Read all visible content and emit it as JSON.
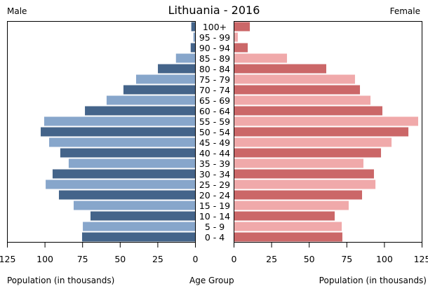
{
  "chart_data": {
    "type": "bar",
    "title": "Lithuania - 2016",
    "left_label": "Male",
    "right_label": "Female",
    "xlabel_left": "Population (in thousands)",
    "xlabel_center": "Age Group",
    "xlabel_right": "Population (in thousands)",
    "xlim": [
      0,
      125
    ],
    "ticks": [
      "0",
      "25",
      "50",
      "75",
      "100",
      "125"
    ],
    "tick_values": [
      0,
      25,
      50,
      75,
      100,
      125
    ],
    "categories": [
      "100+",
      "95 - 99",
      "90 - 94",
      "85 - 89",
      "80 - 84",
      "75 - 79",
      "70 - 74",
      "65 - 69",
      "60 - 64",
      "55 - 59",
      "50 - 54",
      "45 - 49",
      "40 - 44",
      "35 - 39",
      "30 - 34",
      "25 - 29",
      "20 - 24",
      "15 - 19",
      "10 - 14",
      "5 - 9",
      "0 - 4"
    ],
    "series": [
      {
        "name": "Male",
        "values": [
          2.5,
          1.1,
          2.9,
          12.7,
          24.7,
          39.2,
          47.6,
          58.8,
          73.2,
          100.3,
          102.6,
          97.0,
          89.6,
          84.0,
          94.7,
          99.3,
          90.5,
          80.7,
          69.5,
          74.6,
          75.1
        ]
      },
      {
        "name": "Female",
        "values": [
          10.3,
          2.3,
          8.9,
          35.0,
          61.1,
          80.2,
          83.5,
          90.5,
          98.4,
          122.2,
          115.7,
          104.5,
          97.5,
          85.8,
          92.8,
          93.8,
          84.9,
          76.0,
          66.7,
          71.4,
          71.8
        ]
      }
    ],
    "colors": {
      "male_dark": "#44648a",
      "male_light": "#87a6cb",
      "female_dark": "#cb6768",
      "female_light": "#f0a9aa",
      "frame": "#000000"
    },
    "grid": false
  }
}
